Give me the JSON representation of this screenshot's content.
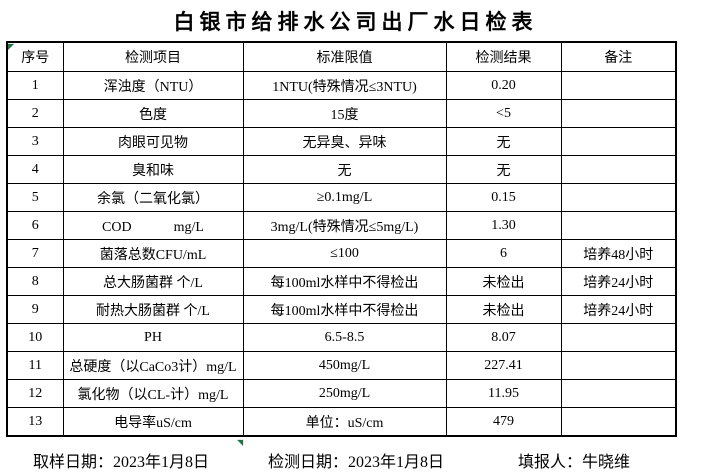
{
  "title": "白银市给排水公司出厂水日检表",
  "table": {
    "headers": [
      "序号",
      "检测项目",
      "标准限值",
      "检测结果",
      "备注"
    ],
    "rows": [
      [
        "1",
        "浑浊度（NTU）",
        "1NTU(特殊情况≤3NTU)",
        "0.20",
        ""
      ],
      [
        "2",
        "色度",
        "15度",
        "<5",
        ""
      ],
      [
        "3",
        "肉眼可见物",
        "无异臭、异味",
        "无",
        ""
      ],
      [
        "4",
        "臭和味",
        "无",
        "无",
        ""
      ],
      [
        "5",
        "余氯（二氧化氯）",
        "≥0.1mg/L",
        "0.15",
        ""
      ],
      [
        "6",
        "COD　　　mg/L",
        "3mg/L(特殊情况≤5mg/L)",
        "1.30",
        ""
      ],
      [
        "7",
        "菌落总数CFU/mL",
        "≤100",
        "6",
        "培养48小时"
      ],
      [
        "8",
        "总大肠菌群 个/L",
        "每100ml水样中不得检出",
        "未检出",
        "培养24小时"
      ],
      [
        "9",
        "耐热大肠菌群 个/L",
        "每100ml水样中不得检出",
        "未检出",
        "培养24小时"
      ],
      [
        "10",
        "PH",
        "6.5-8.5",
        "8.07",
        ""
      ],
      [
        "11",
        "总硬度（以CaCo3计）mg/L",
        "450mg/L",
        "227.41",
        ""
      ],
      [
        "12",
        "氯化物（以CL-计）mg/L",
        "250mg/L",
        "11.95",
        ""
      ],
      [
        "13",
        "电导率uS/cm",
        "单位：uS/cm",
        "479",
        ""
      ]
    ]
  },
  "footer": {
    "sampling": "取样日期：2023年1月8日",
    "testing": "检测日期：2023年1月8日",
    "reporter": "填报人：牛晓维"
  },
  "icons": {
    "corner_marker_glyph_top_left": "◤",
    "corner_marker_glyph_top_right": "◥"
  },
  "colors": {
    "marker_green": "#217346",
    "border": "#000000",
    "background": "#ffffff",
    "text": "#000000"
  }
}
